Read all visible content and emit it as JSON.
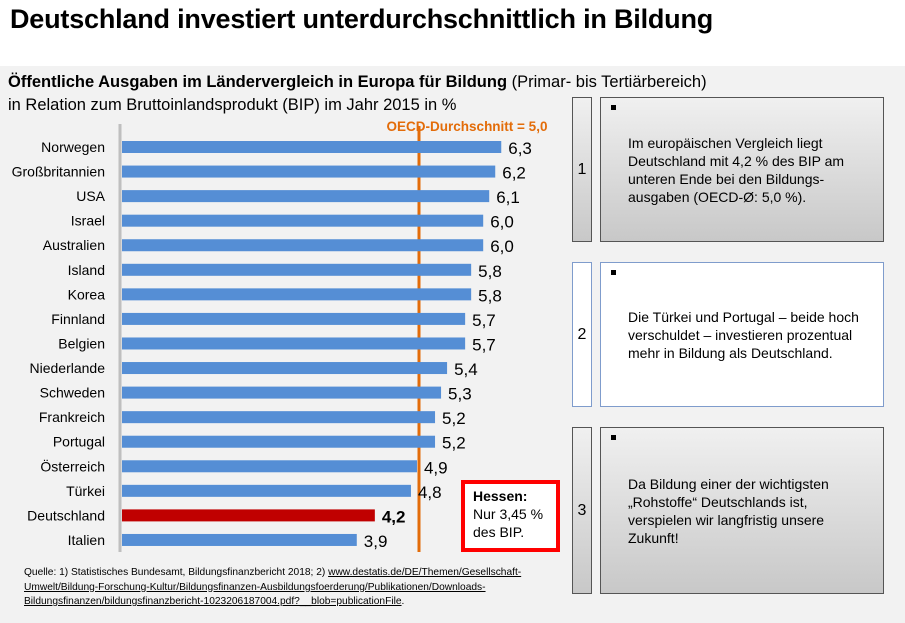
{
  "page": {
    "title": "Deutschland investiert unterdurchschnittlich in Bildung",
    "subtitle_bold": "Öffentliche Ausgaben im Ländervergleich in Europa für Bildung",
    "subtitle_normal": " (Primar- bis Tertiärbereich)",
    "subtitle_line2": "in Relation zum Bruttoinlandsprodukt (BIP) im Jahr 2015 in %"
  },
  "chart_data": {
    "type": "bar",
    "orientation": "horizontal",
    "title": "Öffentliche Ausgaben im Ländervergleich in Europa für Bildung (Primar- bis Tertiärbereich) in Relation zum Bruttoinlandsprodukt (BIP) im Jahr 2015 in %",
    "categories": [
      "Norwegen",
      "Großbritannien",
      "USA",
      "Israel",
      "Australien",
      "Island",
      "Korea",
      "Finnland",
      "Belgien",
      "Niederlande",
      "Schweden",
      "Frankreich",
      "Portugal",
      "Österreich",
      "Türkei",
      "Deutschland",
      "Italien"
    ],
    "values": [
      6.3,
      6.2,
      6.1,
      6.0,
      6.0,
      5.8,
      5.8,
      5.7,
      5.7,
      5.4,
      5.3,
      5.2,
      5.2,
      4.9,
      4.8,
      4.2,
      3.9
    ],
    "value_labels": [
      "6,3",
      "6,2",
      "6,1",
      "6,0",
      "6,0",
      "5,8",
      "5,8",
      "5,7",
      "5,7",
      "5,4",
      "5,3",
      "5,2",
      "5,2",
      "4,9",
      "4,8",
      "4,2",
      "3,9"
    ],
    "highlight": {
      "category": "Deutschland",
      "color": "#c00000"
    },
    "bar_color": "#558ed5",
    "reference_line": {
      "value": 5.0,
      "label": "OECD-Durchschnitt = 5,0",
      "color": "#e36c09"
    },
    "xlim": [
      0,
      6.3
    ],
    "xlabel": "",
    "ylabel": "",
    "grid": false
  },
  "callout": {
    "title": "Hessen:",
    "line1": "Nur 3,45 %",
    "line2": "des BIP.",
    "border_color": "#ff0000"
  },
  "boxes": [
    {
      "number": "1",
      "text": "Im europäischen Vergleich liegt Deutschland mit 4,2 % des BIP am unteren Ende bei den Bildungs-ausgaben (OECD-Ø: 5,0 %)."
    },
    {
      "number": "2",
      "text": "Die Türkei und Portugal – beide hoch verschuldet – investieren prozentual mehr in Bildung als Deutschland."
    },
    {
      "number": "3",
      "text": "Da Bildung einer der wichtigsten „Rohstoffe“ Deutschlands ist, verspielen wir langfristig unsere Zukunft!"
    }
  ],
  "source": {
    "prefix": "Quelle: 1) Statistisches Bundesamt, Bildungsfinanzbericht 2018; 2) ",
    "link": "www.destatis.de/DE/Themen/Gesellschaft-Umwelt/Bildung-Forschung-Kultur/Bildungsfinanzen-Ausbildungsfoerderung/Publikationen/Downloads-Bildungsfinanzen/bildungsfinanzbericht-1023206187004.pdf?__blob=publicationFile",
    "suffix": "."
  }
}
